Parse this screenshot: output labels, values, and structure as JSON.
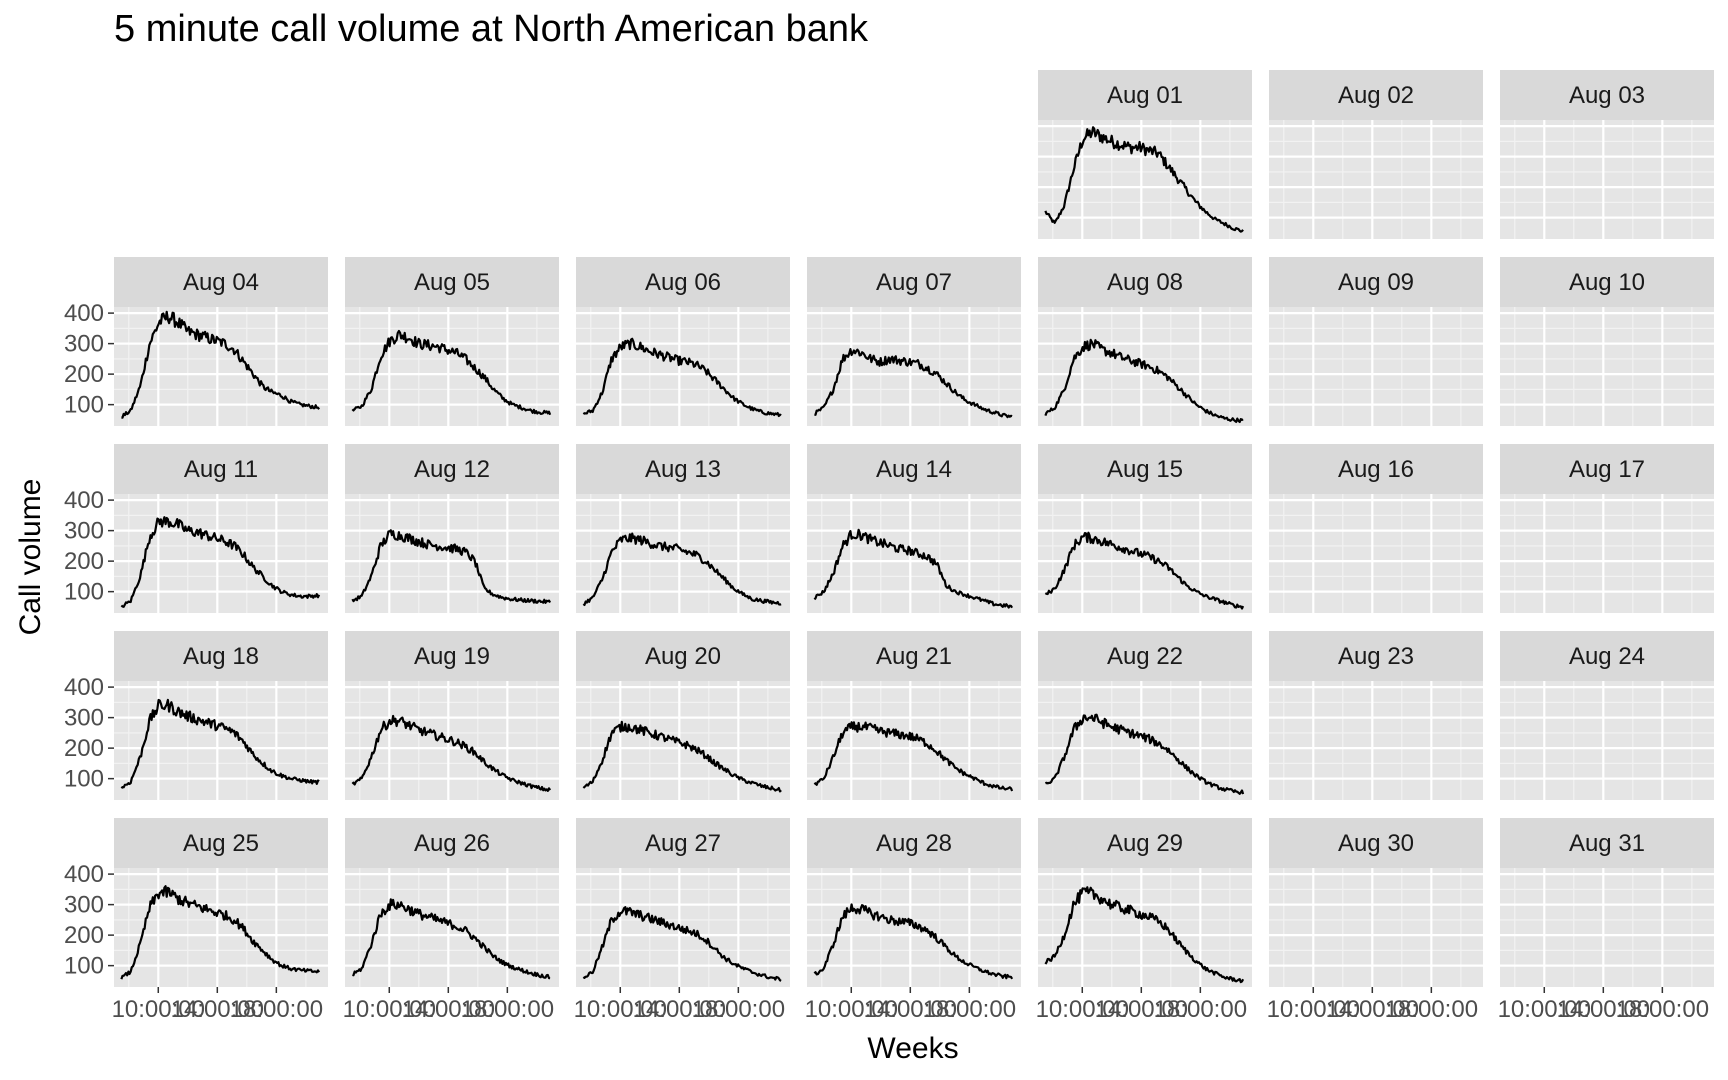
{
  "chart_data": {
    "type": "line",
    "title": "5 minute call volume at North American bank",
    "xlabel": "Weeks",
    "ylabel": "Call volume",
    "yticks": [
      100,
      200,
      300,
      400
    ],
    "ylim": [
      30,
      420
    ],
    "xticks": [
      "10:00:00",
      "14:00:00",
      "18:00:00"
    ],
    "xrange_hours": [
      7,
      21.5
    ],
    "grid": true,
    "panel_background": "#e5e5e5",
    "strip_background": "#d9d9d9",
    "line_color": "#000000",
    "layout": "facet_wrap 5 rows x 7 columns, calendar layout",
    "panels": [
      {
        "label": "Aug 01",
        "profile": [
          120,
          80,
          140,
          260,
          360,
          380,
          365,
          350,
          340,
          330,
          330,
          320,
          310,
          270,
          230,
          190,
          150,
          120,
          95,
          80,
          65,
          55
        ]
      },
      {
        "label": "Aug 02",
        "profile": []
      },
      {
        "label": "Aug 03",
        "profile": []
      },
      {
        "label": "Aug 04",
        "profile": [
          60,
          80,
          160,
          300,
          370,
          390,
          370,
          340,
          330,
          320,
          310,
          300,
          280,
          240,
          200,
          160,
          140,
          130,
          110,
          100,
          95,
          90
        ]
      },
      {
        "label": "Aug 05",
        "profile": [
          80,
          95,
          150,
          260,
          310,
          330,
          320,
          300,
          295,
          290,
          280,
          270,
          250,
          220,
          190,
          150,
          120,
          100,
          90,
          80,
          75,
          72
        ]
      },
      {
        "label": "Aug 06",
        "profile": [
          70,
          80,
          140,
          250,
          290,
          300,
          290,
          275,
          265,
          255,
          245,
          240,
          230,
          210,
          180,
          150,
          120,
          100,
          85,
          75,
          70,
          65
        ]
      },
      {
        "label": "Aug 07",
        "profile": [
          70,
          90,
          150,
          250,
          280,
          270,
          250,
          240,
          250,
          245,
          240,
          235,
          220,
          200,
          170,
          140,
          115,
          100,
          85,
          75,
          65,
          60
        ]
      },
      {
        "label": "Aug 08",
        "profile": [
          70,
          90,
          150,
          250,
          290,
          300,
          280,
          270,
          255,
          245,
          235,
          225,
          210,
          190,
          160,
          130,
          100,
          80,
          65,
          55,
          50,
          48
        ]
      },
      {
        "label": "Aug 09",
        "profile": []
      },
      {
        "label": "Aug 10",
        "profile": []
      },
      {
        "label": "Aug 11",
        "profile": [
          50,
          70,
          150,
          280,
          330,
          330,
          320,
          300,
          295,
          285,
          275,
          265,
          250,
          220,
          180,
          150,
          120,
          100,
          90,
          85,
          85,
          88
        ]
      },
      {
        "label": "Aug 12",
        "profile": [
          70,
          85,
          150,
          250,
          290,
          285,
          275,
          265,
          255,
          250,
          245,
          240,
          230,
          200,
          110,
          90,
          80,
          75,
          72,
          70,
          68,
          66
        ]
      },
      {
        "label": "Aug 13",
        "profile": [
          60,
          80,
          140,
          230,
          270,
          275,
          270,
          260,
          250,
          245,
          240,
          230,
          220,
          200,
          170,
          140,
          110,
          90,
          75,
          70,
          65,
          62
        ]
      },
      {
        "label": "Aug 14",
        "profile": [
          80,
          100,
          160,
          250,
          290,
          285,
          270,
          260,
          250,
          240,
          235,
          225,
          215,
          190,
          120,
          100,
          90,
          80,
          70,
          60,
          55,
          50
        ]
      },
      {
        "label": "Aug 15",
        "profile": [
          90,
          110,
          170,
          250,
          280,
          275,
          265,
          255,
          245,
          235,
          225,
          215,
          200,
          180,
          150,
          120,
          100,
          85,
          75,
          65,
          55,
          50
        ]
      },
      {
        "label": "Aug 16",
        "profile": []
      },
      {
        "label": "Aug 17",
        "profile": []
      },
      {
        "label": "Aug 18",
        "profile": [
          70,
          90,
          170,
          290,
          340,
          340,
          320,
          305,
          295,
          285,
          275,
          265,
          250,
          220,
          180,
          150,
          125,
          110,
          100,
          95,
          90,
          88
        ]
      },
      {
        "label": "Aug 19",
        "profile": [
          80,
          100,
          170,
          260,
          290,
          290,
          275,
          260,
          250,
          240,
          230,
          220,
          205,
          185,
          155,
          130,
          110,
          95,
          85,
          75,
          68,
          62
        ]
      },
      {
        "label": "Aug 20",
        "profile": [
          70,
          90,
          160,
          250,
          270,
          270,
          260,
          250,
          240,
          230,
          220,
          210,
          195,
          175,
          150,
          130,
          110,
          95,
          85,
          75,
          68,
          62
        ]
      },
      {
        "label": "Aug 21",
        "profile": [
          80,
          100,
          170,
          250,
          270,
          270,
          265,
          255,
          250,
          245,
          240,
          230,
          215,
          190,
          160,
          135,
          115,
          100,
          85,
          75,
          68,
          65
        ]
      },
      {
        "label": "Aug 22",
        "profile": [
          80,
          100,
          170,
          260,
          300,
          300,
          285,
          270,
          260,
          250,
          240,
          230,
          215,
          195,
          165,
          135,
          110,
          90,
          75,
          65,
          58,
          55
        ]
      },
      {
        "label": "Aug 23",
        "profile": []
      },
      {
        "label": "Aug 24",
        "profile": []
      },
      {
        "label": "Aug 25",
        "profile": [
          60,
          80,
          170,
          290,
          340,
          340,
          320,
          305,
          295,
          285,
          275,
          265,
          250,
          220,
          180,
          150,
          120,
          100,
          90,
          85,
          82,
          80
        ]
      },
      {
        "label": "Aug 26",
        "profile": [
          70,
          90,
          170,
          270,
          300,
          300,
          285,
          270,
          260,
          250,
          240,
          230,
          215,
          190,
          160,
          130,
          110,
          95,
          85,
          75,
          68,
          62
        ]
      },
      {
        "label": "Aug 27",
        "profile": [
          60,
          80,
          160,
          250,
          280,
          275,
          265,
          255,
          245,
          235,
          225,
          215,
          205,
          185,
          155,
          125,
          105,
          90,
          78,
          68,
          60,
          55
        ]
      },
      {
        "label": "Aug 28",
        "profile": [
          70,
          90,
          170,
          260,
          290,
          285,
          270,
          260,
          250,
          245,
          240,
          230,
          215,
          190,
          160,
          130,
          110,
          95,
          82,
          72,
          65,
          62
        ]
      },
      {
        "label": "Aug 29",
        "profile": [
          110,
          130,
          200,
          300,
          340,
          335,
          320,
          300,
          290,
          280,
          270,
          260,
          245,
          220,
          180,
          145,
          115,
          90,
          75,
          62,
          55,
          50
        ]
      },
      {
        "label": "Aug 30",
        "profile": []
      },
      {
        "label": "Aug 31",
        "profile": []
      }
    ]
  }
}
